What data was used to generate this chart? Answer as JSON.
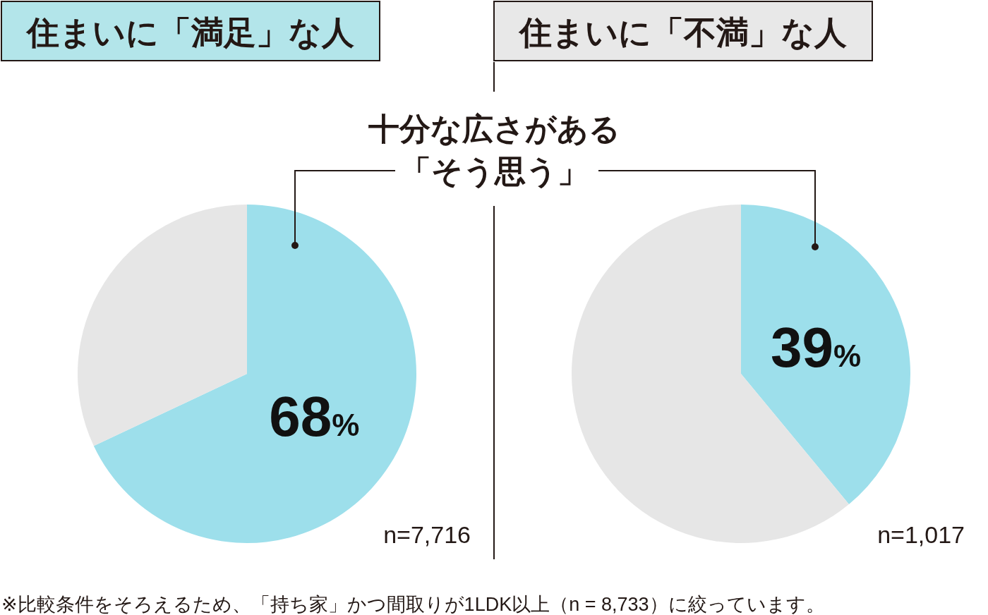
{
  "chart_data": [
    {
      "type": "pie",
      "title": "住まいに「満足」な人",
      "categories": [
        "十分な広さがある「そう思う」",
        null
      ],
      "values": [
        68,
        32
      ],
      "colors": [
        "#9ddfeb",
        "#e6e6e6"
      ],
      "value_labels": [
        "68%",
        null
      ],
      "annotations": [
        "n=7,716"
      ]
    },
    {
      "type": "pie",
      "title": "住まいに「不満」な人",
      "categories": [
        null,
        null
      ],
      "values": [
        39,
        61
      ],
      "colors": [
        "#9ddfeb",
        "#e6e6e6"
      ],
      "value_labels": [
        "39%",
        null
      ],
      "annotations": [
        "n=1,017",
        "※比較条件をそろえるため、「持ち家」かつ間取りが1LDK以上（n = 8,733）に絞っています。"
      ]
    }
  ]
}
